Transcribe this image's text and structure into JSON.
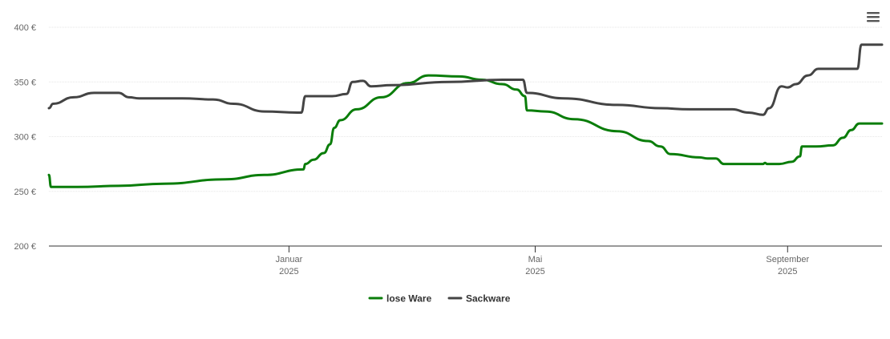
{
  "menu": {
    "icon": "hamburger-menu-icon"
  },
  "chart_data": {
    "type": "line",
    "title": "",
    "xlabel": "",
    "ylabel": "",
    "ylim": [
      200,
      400
    ],
    "y_ticks": [
      "200 €",
      "250 €",
      "300 €",
      "350 €",
      "400 €"
    ],
    "y_tick_values": [
      200,
      250,
      300,
      350,
      400
    ],
    "x_range": [
      "2024-09-06",
      "2025-10-17"
    ],
    "x_ticks": [
      {
        "date": "2025-01-01",
        "month": "Januar",
        "year": "2025"
      },
      {
        "date": "2025-05-01",
        "month": "Mai",
        "year": "2025"
      },
      {
        "date": "2025-09-01",
        "month": "September",
        "year": "2025"
      }
    ],
    "grid": "horizontal",
    "legend_position": "bottom-center",
    "series": [
      {
        "name": "lose Ware",
        "color": "#0a7d0a",
        "points": [
          [
            "2024-09-06",
            265
          ],
          [
            "2024-09-07",
            254
          ],
          [
            "2024-09-20",
            254
          ],
          [
            "2024-10-10",
            255
          ],
          [
            "2024-11-01",
            257
          ],
          [
            "2024-12-01",
            261
          ],
          [
            "2024-12-20",
            265
          ],
          [
            "2025-01-08",
            270
          ],
          [
            "2025-01-09",
            275
          ],
          [
            "2025-01-13",
            279
          ],
          [
            "2025-01-18",
            285
          ],
          [
            "2025-01-21",
            293
          ],
          [
            "2025-01-23",
            308
          ],
          [
            "2025-01-26",
            315
          ],
          [
            "2025-02-03",
            325
          ],
          [
            "2025-02-15",
            336
          ],
          [
            "2025-02-28",
            349
          ],
          [
            "2025-03-10",
            356
          ],
          [
            "2025-03-25",
            355
          ],
          [
            "2025-04-05",
            352
          ],
          [
            "2025-04-15",
            348
          ],
          [
            "2025-04-22",
            343
          ],
          [
            "2025-04-26",
            337
          ],
          [
            "2025-04-27",
            324
          ],
          [
            "2025-05-06",
            323
          ],
          [
            "2025-05-20",
            316
          ],
          [
            "2025-06-10",
            305
          ],
          [
            "2025-06-25",
            296
          ],
          [
            "2025-07-01",
            291
          ],
          [
            "2025-07-06",
            284
          ],
          [
            "2025-07-20",
            281
          ],
          [
            "2025-07-24",
            280
          ],
          [
            "2025-07-28",
            280
          ],
          [
            "2025-08-01",
            275
          ],
          [
            "2025-08-15",
            275
          ],
          [
            "2025-08-20",
            275
          ],
          [
            "2025-08-21",
            276
          ],
          [
            "2025-08-22",
            275
          ],
          [
            "2025-08-28",
            275
          ],
          [
            "2025-09-03",
            277
          ],
          [
            "2025-09-07",
            282
          ],
          [
            "2025-09-08",
            291
          ],
          [
            "2025-09-15",
            291
          ],
          [
            "2025-09-23",
            292
          ],
          [
            "2025-09-28",
            299
          ],
          [
            "2025-10-02",
            306
          ],
          [
            "2025-10-06",
            312
          ],
          [
            "2025-10-17",
            312
          ]
        ]
      },
      {
        "name": "Sackware",
        "color": "#444444",
        "points": [
          [
            "2024-09-06",
            326
          ],
          [
            "2024-09-08",
            330
          ],
          [
            "2024-09-18",
            336
          ],
          [
            "2024-09-28",
            340
          ],
          [
            "2024-10-10",
            340
          ],
          [
            "2024-10-15",
            336
          ],
          [
            "2024-10-20",
            335
          ],
          [
            "2024-11-10",
            335
          ],
          [
            "2024-11-25",
            334
          ],
          [
            "2024-12-05",
            330
          ],
          [
            "2024-12-20",
            323
          ],
          [
            "2025-01-05",
            322
          ],
          [
            "2025-01-07",
            322
          ],
          [
            "2025-01-09",
            337
          ],
          [
            "2025-01-22",
            337
          ],
          [
            "2025-01-29",
            339
          ],
          [
            "2025-02-01",
            350
          ],
          [
            "2025-02-06",
            351
          ],
          [
            "2025-02-10",
            346
          ],
          [
            "2025-02-20",
            347
          ],
          [
            "2025-03-20",
            350
          ],
          [
            "2025-04-15",
            352
          ],
          [
            "2025-04-25",
            352
          ],
          [
            "2025-04-27",
            340
          ],
          [
            "2025-05-15",
            335
          ],
          [
            "2025-06-10",
            329
          ],
          [
            "2025-07-01",
            326
          ],
          [
            "2025-07-15",
            325
          ],
          [
            "2025-08-05",
            325
          ],
          [
            "2025-08-13",
            322
          ],
          [
            "2025-08-20",
            320
          ],
          [
            "2025-08-23",
            326
          ],
          [
            "2025-08-29",
            346
          ],
          [
            "2025-09-01",
            345
          ],
          [
            "2025-09-05",
            348
          ],
          [
            "2025-09-11",
            356
          ],
          [
            "2025-09-16",
            362
          ],
          [
            "2025-09-27",
            362
          ],
          [
            "2025-10-05",
            362
          ],
          [
            "2025-10-07",
            384
          ],
          [
            "2025-10-17",
            384
          ]
        ]
      }
    ]
  }
}
